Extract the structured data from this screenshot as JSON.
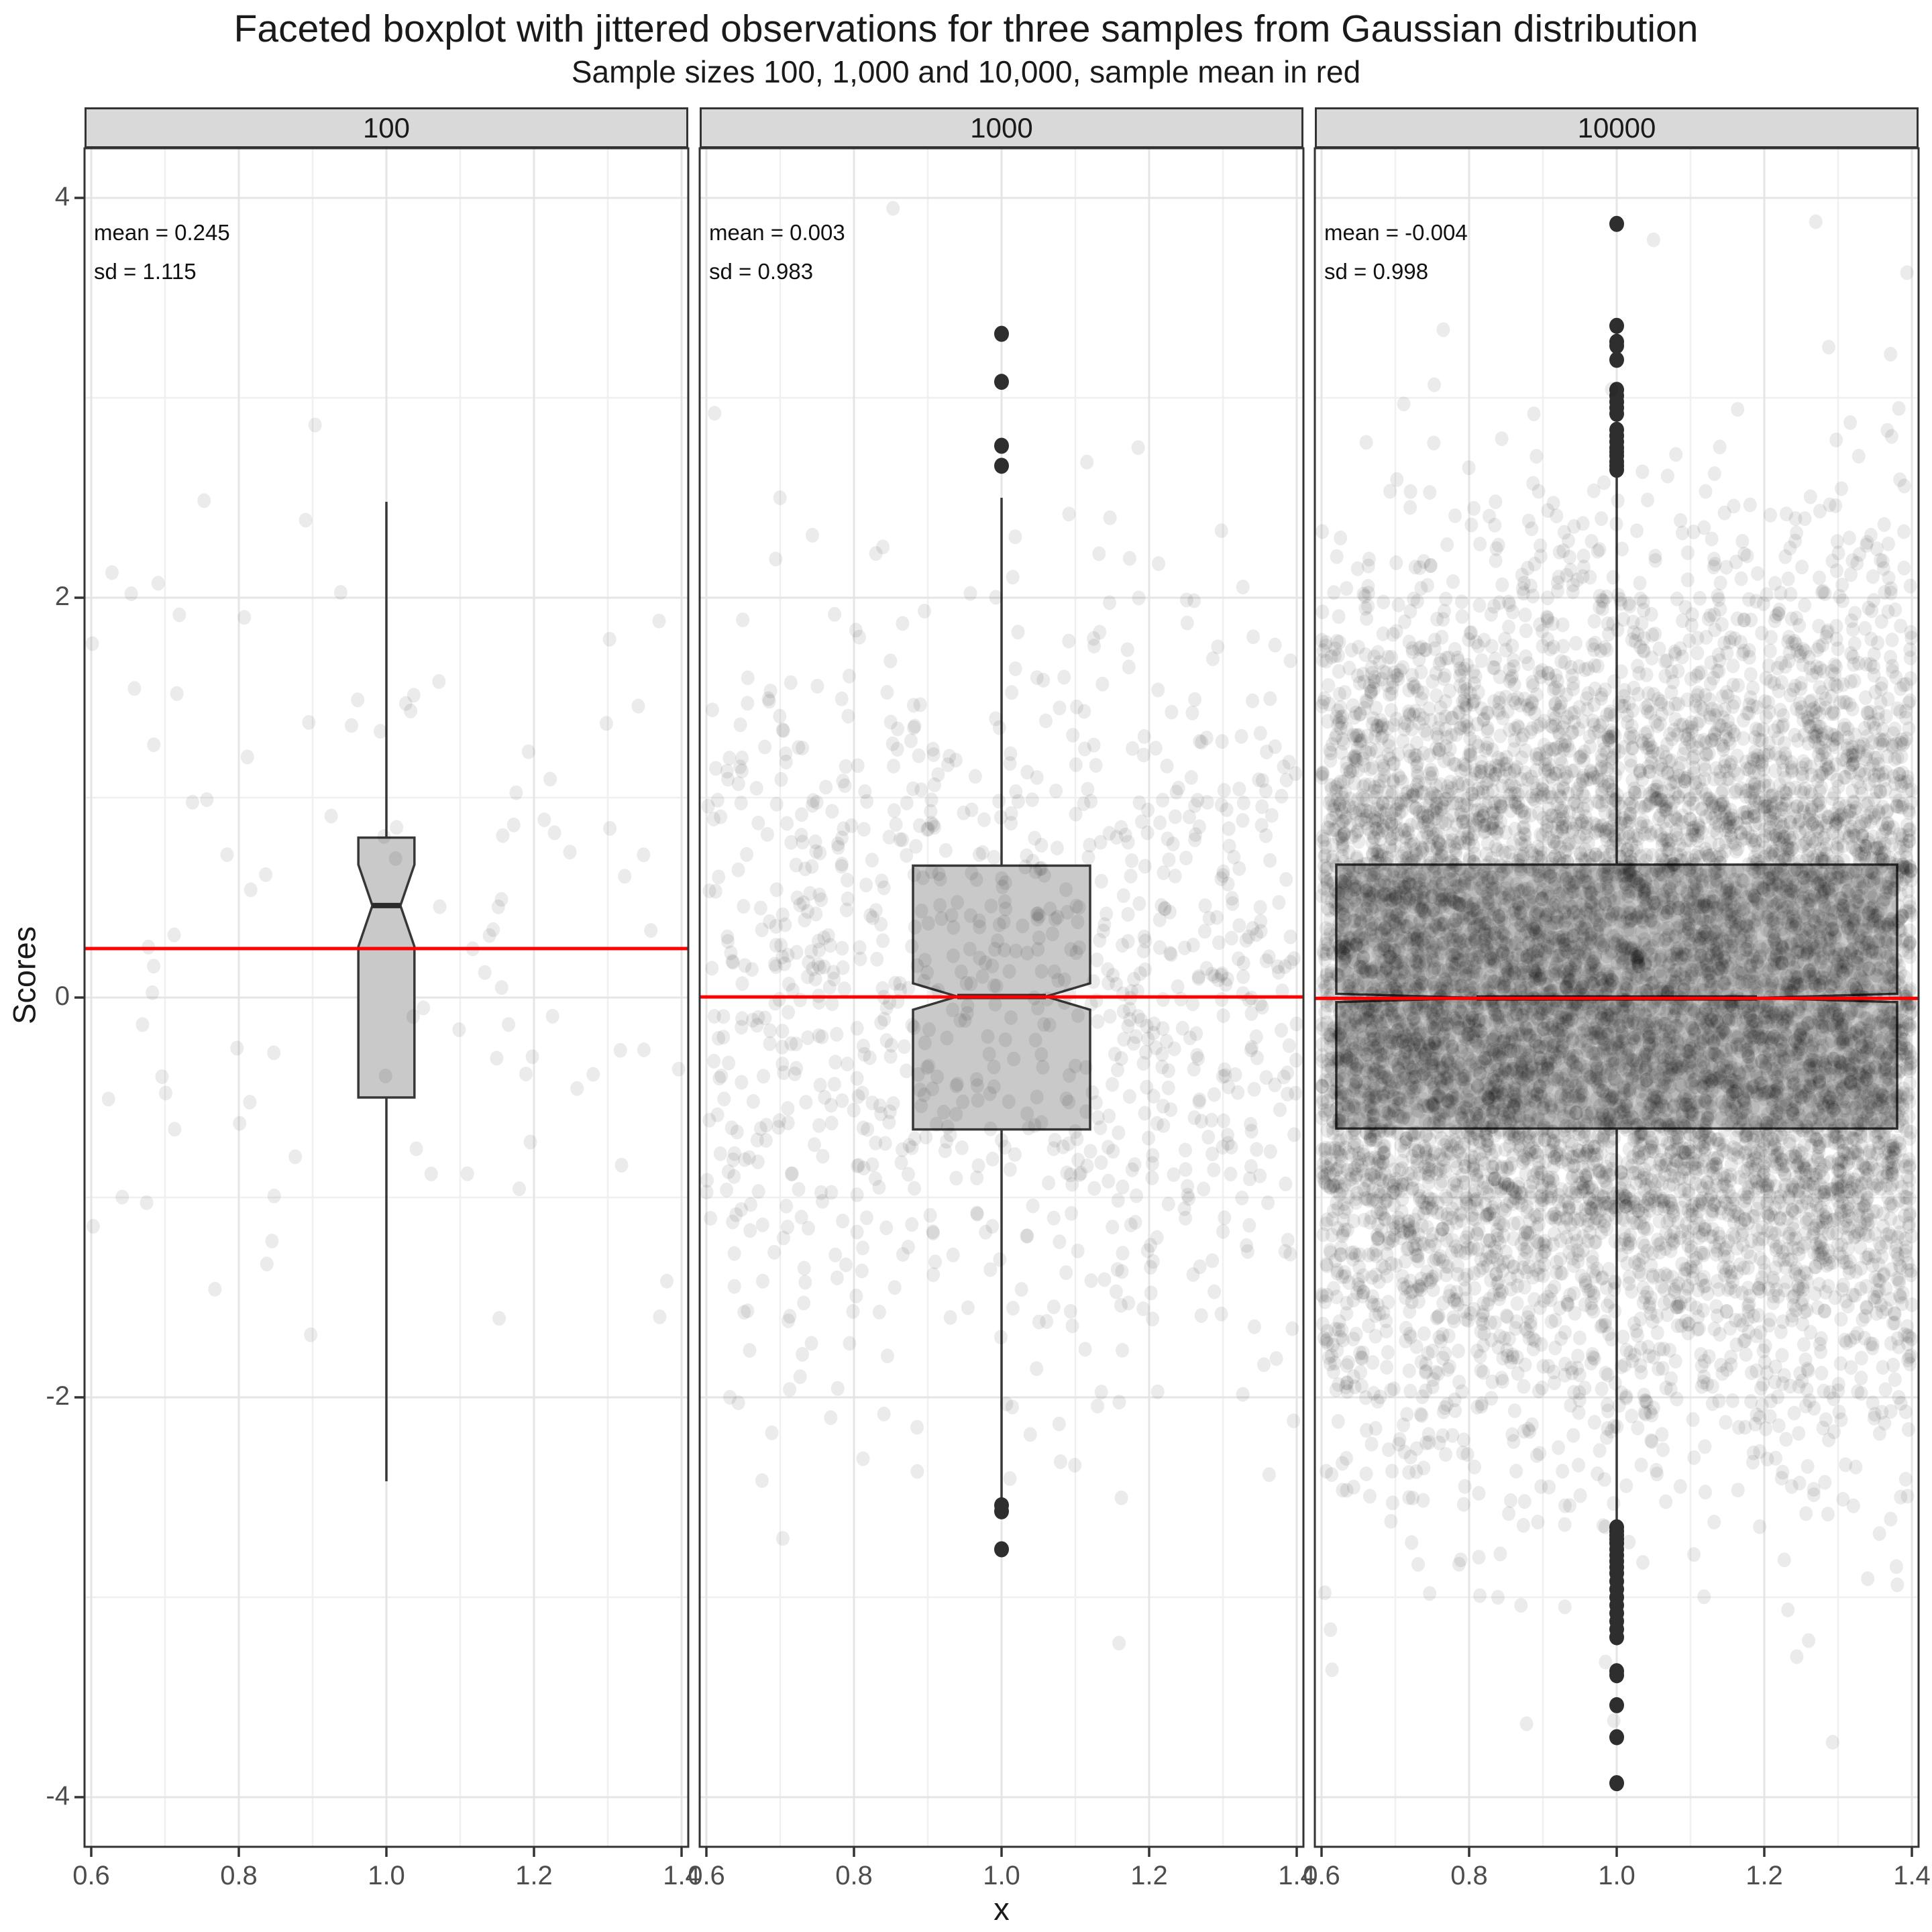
{
  "title": "Faceted boxplot with jittered observations for three samples from Gaussian distribution",
  "subtitle": "Sample sizes 100, 1,000 and 10,000, sample mean in red",
  "axes": {
    "x": {
      "title": "x",
      "ticks": [
        0.6,
        0.8,
        1.0,
        1.2,
        1.4
      ],
      "tick_labels": [
        "0.6",
        "0.8",
        "1.0",
        "1.2",
        "1.4"
      ],
      "minor_ticks": [
        0.7,
        0.9,
        1.1,
        1.3
      ]
    },
    "y": {
      "title": "Scores",
      "ticks": [
        4,
        2,
        0,
        -2,
        -4
      ],
      "tick_labels": [
        "4",
        "2",
        "0",
        "-2",
        "-4"
      ],
      "minor_ticks": [
        3,
        1,
        -1,
        -3
      ],
      "range": [
        -4.25,
        4.25
      ]
    }
  },
  "style": {
    "accent_red": "#fe0000",
    "box_fill": "#c9c9c9",
    "box_stroke": "#373737",
    "median_stroke": "#2b2b2b",
    "strip_fill": "#d9d9d9",
    "strip_border": "#333333",
    "panel_border": "#333333",
    "grid_major": "#e5e5e5",
    "grid_minor": "#f0f0f0",
    "tick_color": "#333333",
    "tick_label_color": "#4d4d4d",
    "text_color": "#1a1a1a",
    "jitter_fill": "rgba(0,0,0,0.08)",
    "outlier_fill": "#2e2e2e"
  },
  "chart_data": {
    "type": "boxplot-faceted",
    "note": "Notched boxplots with jittered observations; red horizontal line = sample mean",
    "facets": [
      {
        "label": "100",
        "n": 100,
        "mean": 0.245,
        "sd": 1.115,
        "annotation_mean": "mean = 0.245",
        "annotation_sd": "sd = 1.115",
        "stats": {
          "median": 0.46,
          "q1": -0.5,
          "q3": 0.8,
          "notch_low": 0.255,
          "notch_high": 0.665,
          "whisker_low": -2.42,
          "whisker_high": 2.48,
          "box_halfwidth": 0.038
        },
        "outliers_high": [],
        "outliers_low": [],
        "jitter_seed": 101
      },
      {
        "label": "1000",
        "n": 1000,
        "mean": 0.003,
        "sd": 0.983,
        "annotation_mean": "mean = 0.003",
        "annotation_sd": "sd = 0.983",
        "stats": {
          "median": 0.005,
          "q1": -0.66,
          "q3": 0.66,
          "notch_low": -0.061,
          "notch_high": 0.071,
          "whisker_low": -2.52,
          "whisker_high": 2.5,
          "box_halfwidth": 0.12
        },
        "outliers_high": [
          2.66,
          2.76,
          3.08,
          3.32
        ],
        "outliers_low": [
          -2.54,
          -2.57,
          -2.76
        ],
        "jitter_seed": 202
      },
      {
        "label": "10000",
        "n": 10000,
        "mean": -0.004,
        "sd": 0.998,
        "annotation_mean": "mean = -0.004",
        "annotation_sd": "sd = 0.998",
        "stats": {
          "median": -0.002,
          "q1": -0.655,
          "q3": 0.665,
          "notch_low": -0.023,
          "notch_high": 0.019,
          "whisker_low": -2.64,
          "whisker_high": 2.63,
          "box_halfwidth": 0.38
        },
        "outliers_high": [
          2.64,
          2.66,
          2.68,
          2.71,
          2.73,
          2.75,
          2.78,
          2.81,
          2.84,
          2.92,
          2.95,
          2.98,
          3.01,
          3.04,
          3.19,
          3.26,
          3.28,
          3.36,
          3.87
        ],
        "outliers_low": [
          -2.65,
          -2.67,
          -2.69,
          -2.71,
          -2.73,
          -2.76,
          -2.79,
          -2.82,
          -2.85,
          -2.88,
          -2.92,
          -2.96,
          -3.0,
          -3.04,
          -3.08,
          -3.12,
          -3.16,
          -3.2,
          -3.37,
          -3.39,
          -3.54,
          -3.7,
          -3.93
        ],
        "jitter_seed": 303
      }
    ]
  }
}
